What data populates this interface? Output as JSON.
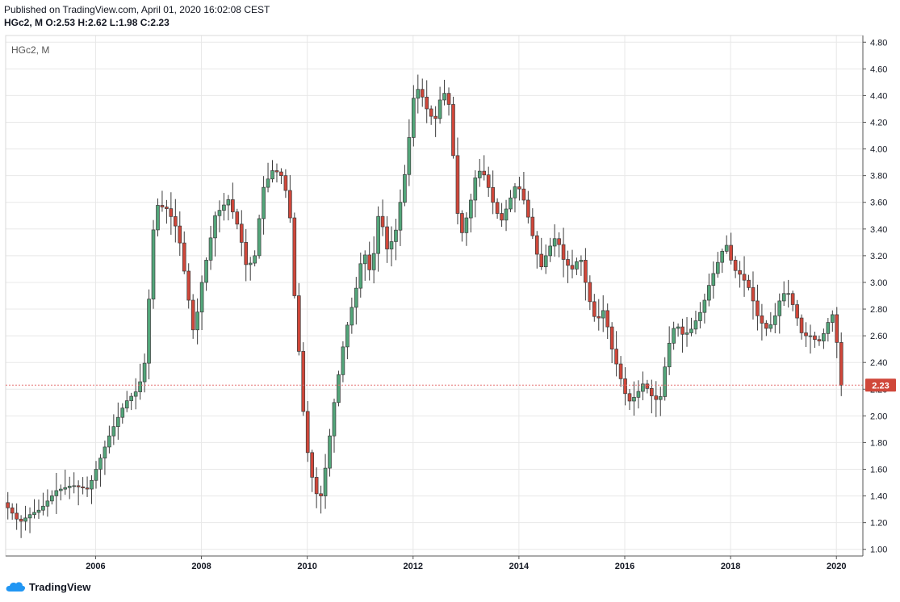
{
  "header": {
    "published": "Published on TradingView.com, April 01, 2020 16:02:08 CEST",
    "ohlc": "HGc2, M O:2.53 H:2.62 L:1.98 C:2.23"
  },
  "footer": {
    "brand": "TradingView"
  },
  "colors": {
    "up": "#53a67a",
    "down": "#d0473a",
    "grid": "#e8e8e8",
    "price_line": "#e57373"
  },
  "chart_data": {
    "type": "candlestick",
    "symbol_label": "HGc2, M",
    "ylim": [
      0.95,
      4.85
    ],
    "xlim": [
      2004.3,
      2020.5
    ],
    "y_ticks": [
      "1.00",
      "1.20",
      "1.40",
      "1.60",
      "1.80",
      "2.00",
      "2.20",
      "2.40",
      "2.60",
      "2.80",
      "3.00",
      "3.20",
      "3.40",
      "3.60",
      "3.80",
      "4.00",
      "4.20",
      "4.40",
      "4.60",
      "4.80"
    ],
    "x_ticks": [
      "2006",
      "2008",
      "2010",
      "2012",
      "2014",
      "2016",
      "2018",
      "2020"
    ],
    "last_price_label": "2.23",
    "last_price": 2.23,
    "anchors": [
      [
        2004.3,
        1.35
      ],
      [
        2004.45,
        1.28
      ],
      [
        2004.6,
        1.2
      ],
      [
        2004.8,
        1.26
      ],
      [
        2005.0,
        1.3
      ],
      [
        2005.3,
        1.44
      ],
      [
        2005.6,
        1.48
      ],
      [
        2005.9,
        1.45
      ],
      [
        2006.0,
        1.55
      ],
      [
        2006.3,
        1.85
      ],
      [
        2006.6,
        2.1
      ],
      [
        2006.85,
        2.2
      ],
      [
        2007.0,
        2.45
      ],
      [
        2007.1,
        3.3
      ],
      [
        2007.2,
        3.58
      ],
      [
        2007.4,
        3.55
      ],
      [
        2007.6,
        3.38
      ],
      [
        2007.75,
        3.0
      ],
      [
        2007.9,
        2.6
      ],
      [
        2008.05,
        3.0
      ],
      [
        2008.3,
        3.5
      ],
      [
        2008.55,
        3.62
      ],
      [
        2008.75,
        3.4
      ],
      [
        2008.9,
        3.1
      ],
      [
        2009.05,
        3.2
      ],
      [
        2009.2,
        3.7
      ],
      [
        2009.4,
        3.85
      ],
      [
        2009.55,
        3.8
      ],
      [
        2009.7,
        3.6
      ],
      [
        2009.8,
        2.9
      ],
      [
        2009.9,
        2.4
      ],
      [
        2010.0,
        1.85
      ],
      [
        2010.1,
        1.6
      ],
      [
        2010.2,
        1.42
      ],
      [
        2010.3,
        1.4
      ],
      [
        2010.4,
        1.65
      ],
      [
        2010.55,
        2.1
      ],
      [
        2010.75,
        2.6
      ],
      [
        2010.95,
        2.92
      ],
      [
        2011.1,
        3.25
      ],
      [
        2011.25,
        3.05
      ],
      [
        2011.4,
        3.55
      ],
      [
        2011.55,
        3.25
      ],
      [
        2011.7,
        3.35
      ],
      [
        2011.9,
        3.85
      ],
      [
        2012.05,
        4.38
      ],
      [
        2012.15,
        4.46
      ],
      [
        2012.3,
        4.3
      ],
      [
        2012.45,
        4.2
      ],
      [
        2012.6,
        4.45
      ],
      [
        2012.75,
        4.3
      ],
      [
        2012.85,
        3.6
      ],
      [
        2012.95,
        3.35
      ],
      [
        2013.1,
        3.55
      ],
      [
        2013.25,
        3.85
      ],
      [
        2013.4,
        3.8
      ],
      [
        2013.55,
        3.6
      ],
      [
        2013.7,
        3.45
      ],
      [
        2013.85,
        3.6
      ],
      [
        2014.0,
        3.75
      ],
      [
        2014.15,
        3.6
      ],
      [
        2014.3,
        3.35
      ],
      [
        2014.45,
        3.1
      ],
      [
        2014.6,
        3.25
      ],
      [
        2014.75,
        3.35
      ],
      [
        2014.9,
        3.15
      ],
      [
        2015.05,
        3.1
      ],
      [
        2015.2,
        3.2
      ],
      [
        2015.35,
        2.9
      ],
      [
        2015.5,
        2.7
      ],
      [
        2015.65,
        2.8
      ],
      [
        2015.8,
        2.5
      ],
      [
        2015.95,
        2.3
      ],
      [
        2016.1,
        2.1
      ],
      [
        2016.25,
        2.15
      ],
      [
        2016.4,
        2.25
      ],
      [
        2016.55,
        2.15
      ],
      [
        2016.7,
        2.1
      ],
      [
        2016.85,
        2.5
      ],
      [
        2017.0,
        2.7
      ],
      [
        2017.15,
        2.6
      ],
      [
        2017.3,
        2.65
      ],
      [
        2017.5,
        2.8
      ],
      [
        2017.65,
        3.0
      ],
      [
        2017.8,
        3.15
      ],
      [
        2017.95,
        3.3
      ],
      [
        2018.1,
        3.1
      ],
      [
        2018.25,
        3.05
      ],
      [
        2018.4,
        2.95
      ],
      [
        2018.55,
        2.75
      ],
      [
        2018.7,
        2.65
      ],
      [
        2018.85,
        2.7
      ],
      [
        2018.95,
        2.85
      ],
      [
        2019.1,
        2.95
      ],
      [
        2019.25,
        2.8
      ],
      [
        2019.4,
        2.6
      ],
      [
        2019.55,
        2.6
      ],
      [
        2019.7,
        2.55
      ],
      [
        2019.85,
        2.65
      ],
      [
        2019.95,
        2.8
      ],
      [
        2020.05,
        2.55
      ],
      [
        2020.12,
        2.23
      ]
    ]
  }
}
